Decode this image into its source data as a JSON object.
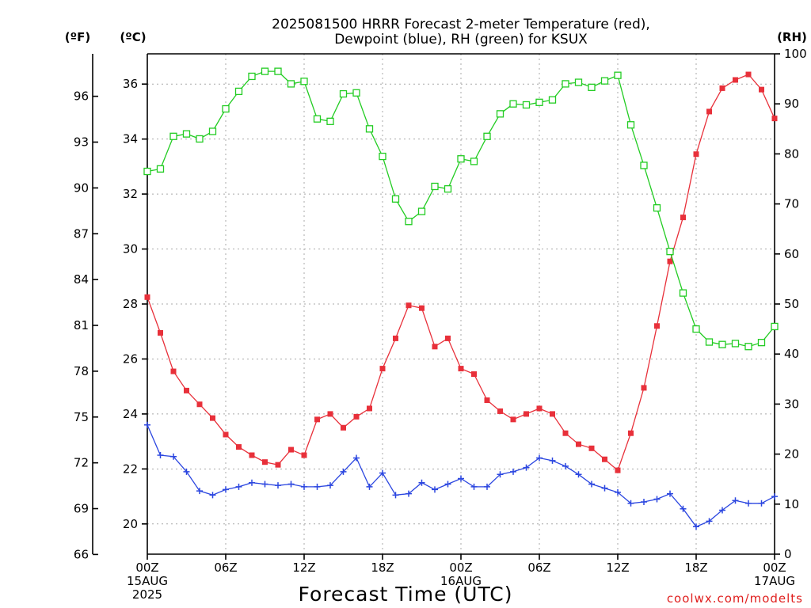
{
  "chart_data": {
    "type": "line",
    "title_lines": [
      "2025081500 HRRR Forecast 2-meter Temperature (red),",
      "Dewpoint (blue), RH (green) for KSUX"
    ],
    "unit_labels": {
      "fahrenheit": "(ºF)",
      "celsius": "(ºC)",
      "rh": "(RH)"
    },
    "xlabel": "Forecast Time (UTC)",
    "credit": "coolwx.com/modelts",
    "x_ticks": [
      {
        "hour": 0,
        "lines": [
          "00Z",
          "15AUG",
          "2025"
        ]
      },
      {
        "hour": 6,
        "lines": [
          "06Z"
        ]
      },
      {
        "hour": 12,
        "lines": [
          "12Z"
        ]
      },
      {
        "hour": 18,
        "lines": [
          "18Z"
        ]
      },
      {
        "hour": 24,
        "lines": [
          "00Z",
          "16AUG"
        ]
      },
      {
        "hour": 30,
        "lines": [
          "06Z"
        ]
      },
      {
        "hour": 36,
        "lines": [
          "12Z"
        ]
      },
      {
        "hour": 42,
        "lines": [
          "18Z"
        ]
      },
      {
        "hour": 48,
        "lines": [
          "00Z",
          "17AUG"
        ]
      }
    ],
    "x_range_hours": [
      0,
      48
    ],
    "celsius_axis": {
      "range": [
        18.9,
        37.1
      ],
      "ticks": [
        20,
        22,
        24,
        26,
        28,
        30,
        32,
        34,
        36
      ]
    },
    "fahrenheit_axis": {
      "ticks": [
        66,
        69,
        72,
        75,
        78,
        81,
        84,
        87,
        90,
        93,
        96
      ]
    },
    "rh_axis": {
      "range": [
        0,
        100
      ],
      "ticks": [
        0,
        10,
        20,
        30,
        40,
        50,
        60,
        70,
        80,
        90,
        100
      ]
    },
    "grid": true,
    "series": [
      {
        "key": "temperature",
        "unit": "celsius",
        "color": "#e8303a",
        "marker": "filled-square",
        "values": [
          28.25,
          26.95,
          25.55,
          24.85,
          24.35,
          23.85,
          23.25,
          22.8,
          22.5,
          22.25,
          22.15,
          22.7,
          22.5,
          23.8,
          24.0,
          23.5,
          23.9,
          24.2,
          25.65,
          26.75,
          27.95,
          27.85,
          26.45,
          26.75,
          25.65,
          25.45,
          24.5,
          24.1,
          23.8,
          24.0,
          24.2,
          24.0,
          23.3,
          22.9,
          22.75,
          22.35,
          21.95,
          23.3,
          24.95,
          27.2,
          29.55,
          31.15,
          33.45,
          35.0,
          35.85,
          36.15,
          36.35,
          35.8,
          34.75
        ]
      },
      {
        "key": "dewpoint",
        "unit": "celsius",
        "color": "#2b46e0",
        "marker": "plus",
        "values": [
          23.6,
          22.5,
          22.45,
          21.9,
          21.2,
          21.05,
          21.25,
          21.35,
          21.5,
          21.45,
          21.4,
          21.45,
          21.35,
          21.35,
          21.4,
          21.9,
          22.4,
          21.35,
          21.85,
          21.05,
          21.1,
          21.5,
          21.25,
          21.45,
          21.65,
          21.35,
          21.35,
          21.8,
          21.9,
          22.05,
          22.4,
          22.3,
          22.1,
          21.8,
          21.45,
          21.3,
          21.15,
          20.75,
          20.8,
          20.9,
          21.1,
          20.55,
          19.9,
          20.1,
          20.5,
          20.85,
          20.75,
          20.75,
          21.0
        ]
      },
      {
        "key": "rh",
        "unit": "percent",
        "color": "#22cc22",
        "marker": "open-square",
        "values": [
          76.5,
          77.0,
          83.5,
          84.0,
          83.0,
          84.5,
          89.0,
          92.5,
          95.5,
          96.5,
          96.5,
          94.0,
          94.5,
          87.0,
          86.5,
          92.0,
          92.2,
          85.0,
          79.5,
          71.0,
          66.5,
          68.5,
          73.5,
          73.0,
          79.0,
          78.5,
          83.5,
          88.0,
          90.0,
          89.8,
          90.3,
          90.8,
          94.0,
          94.3,
          93.3,
          94.6,
          95.7,
          85.8,
          77.7,
          69.2,
          60.5,
          52.2,
          45.0,
          42.4,
          41.9,
          42.1,
          41.5,
          42.3,
          45.5
        ]
      }
    ]
  }
}
